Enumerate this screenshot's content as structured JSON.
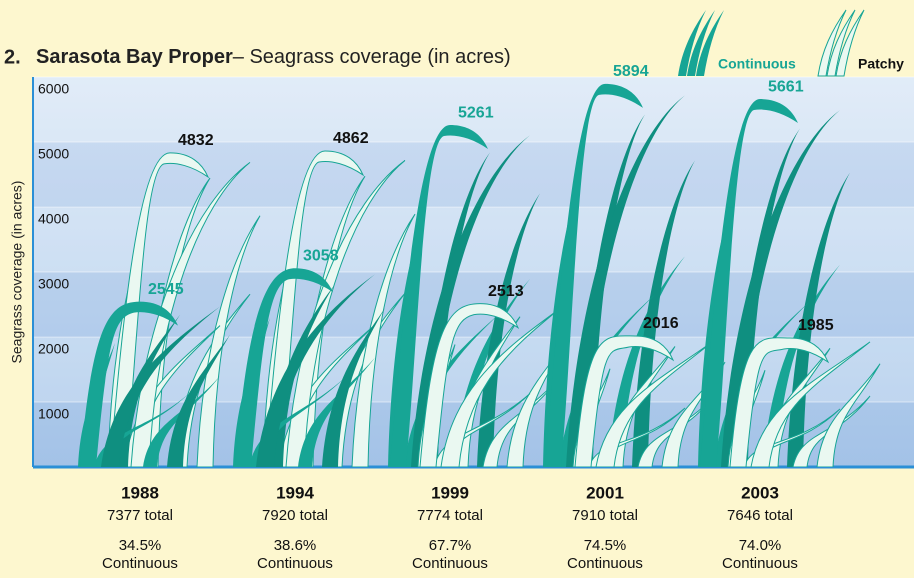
{
  "chart_data": {
    "type": "pictograph",
    "figure_number": "2.",
    "title": "Sarasota Bay Proper",
    "subtitle": "– Seagrass coverage (in acres)",
    "y_axis_label": "Seagrass coverage (in acres)",
    "categories": [
      "1988",
      "1994",
      "1999",
      "2001",
      "2003"
    ],
    "series": [
      {
        "name": "Continuous",
        "color": "#17a595",
        "values": [
          2545,
          3058,
          5261,
          5894,
          5661
        ]
      },
      {
        "name": "Patchy",
        "color": "#eaf8f1",
        "values": [
          4832,
          4862,
          2513,
          2016,
          1985
        ]
      }
    ],
    "total_labels": [
      "7377 total",
      "7920 total",
      "7774 total",
      "7910 total",
      "7646 total"
    ],
    "continuous_share_labels": [
      "34.5%",
      "38.6%",
      "67.7%",
      "74.5%",
      "74.0%"
    ],
    "ylim": [
      0,
      6000
    ],
    "yticks": [
      1000,
      2000,
      3000,
      4000,
      5000,
      6000
    ]
  }
}
